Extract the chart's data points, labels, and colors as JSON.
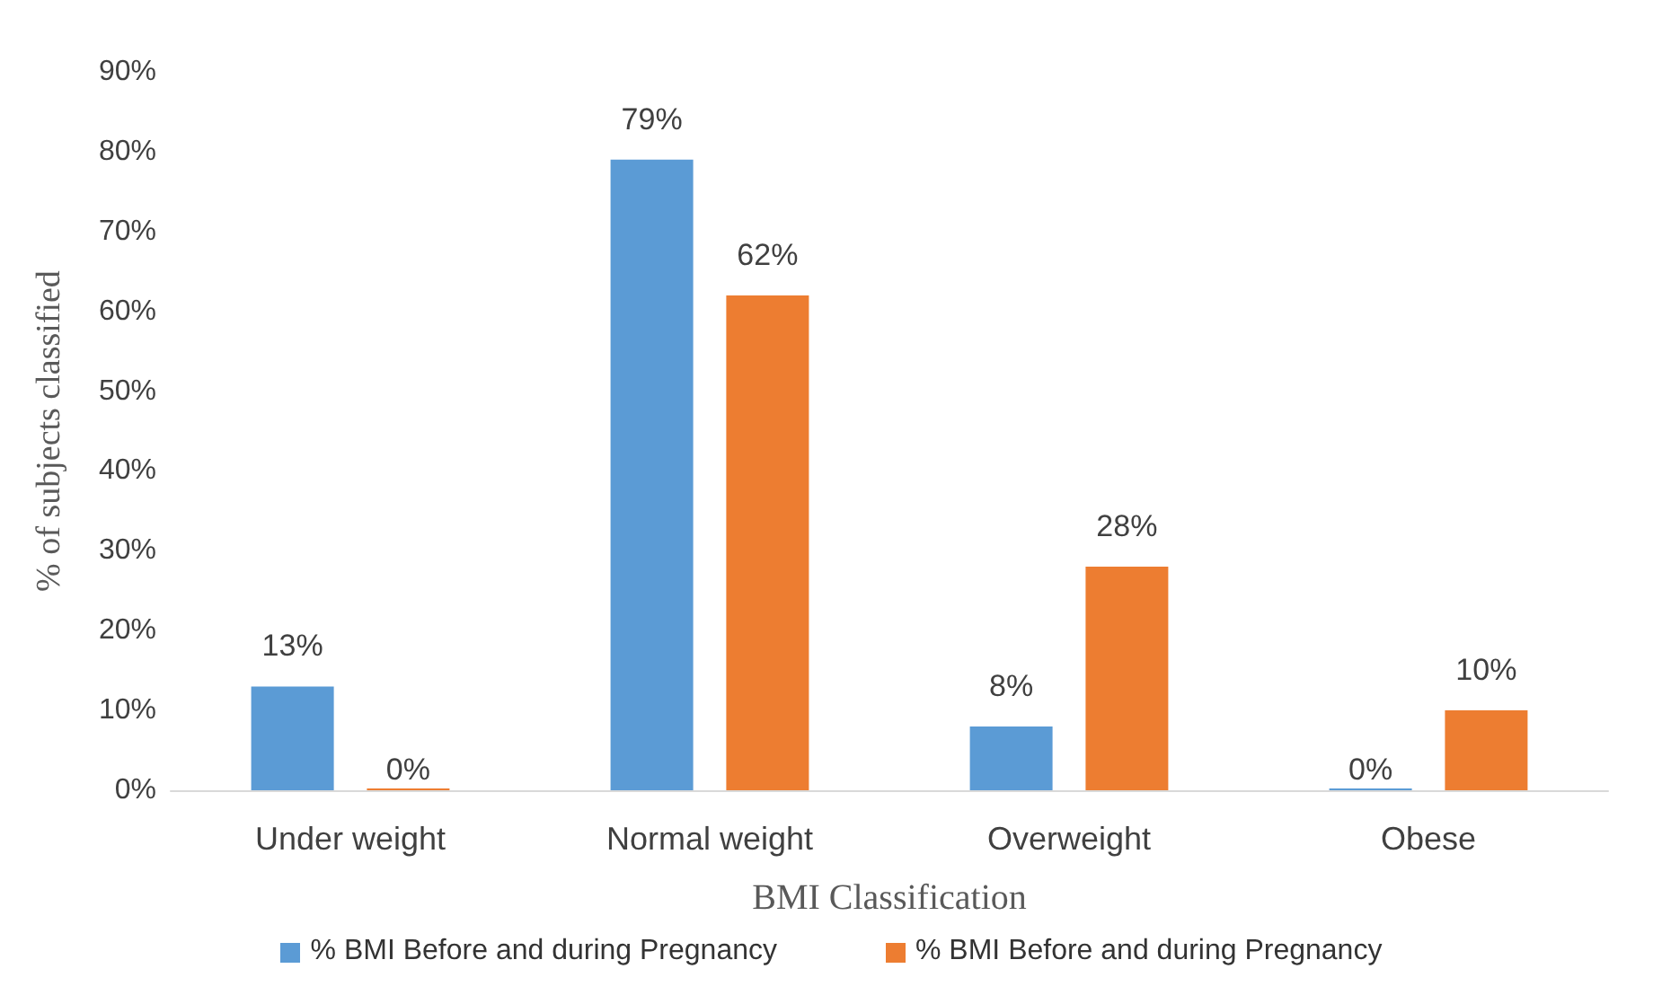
{
  "chart_data": {
    "type": "bar",
    "xlabel": "BMI Classification",
    "ylabel": "% of subjects classified",
    "categories": [
      "Under weight",
      "Normal weight",
      "Overweight",
      "Obese"
    ],
    "series": [
      {
        "name": "% BMI Before and during Pregnancy",
        "color": "#5b9bd5",
        "values": [
          13,
          79,
          8,
          0
        ],
        "value_labels": [
          "13%",
          "79%",
          "8%",
          "0%"
        ]
      },
      {
        "name": "% BMI Before and during Pregnancy",
        "color": "#ed7d31",
        "values": [
          0,
          62,
          28,
          10
        ],
        "value_labels": [
          "0%",
          "62%",
          "28%",
          "10%"
        ]
      }
    ],
    "ylim": [
      0,
      90
    ],
    "yticks": [
      {
        "value": 0,
        "label": "0%"
      },
      {
        "value": 10,
        "label": "10%"
      },
      {
        "value": 20,
        "label": "20%"
      },
      {
        "value": 30,
        "label": "30%"
      },
      {
        "value": 40,
        "label": "40%"
      },
      {
        "value": 50,
        "label": "50%"
      },
      {
        "value": 60,
        "label": "60%"
      },
      {
        "value": 70,
        "label": "70%"
      },
      {
        "value": 80,
        "label": "80%"
      },
      {
        "value": 90,
        "label": "90%"
      }
    ],
    "grid": false,
    "legend": "bottom"
  }
}
